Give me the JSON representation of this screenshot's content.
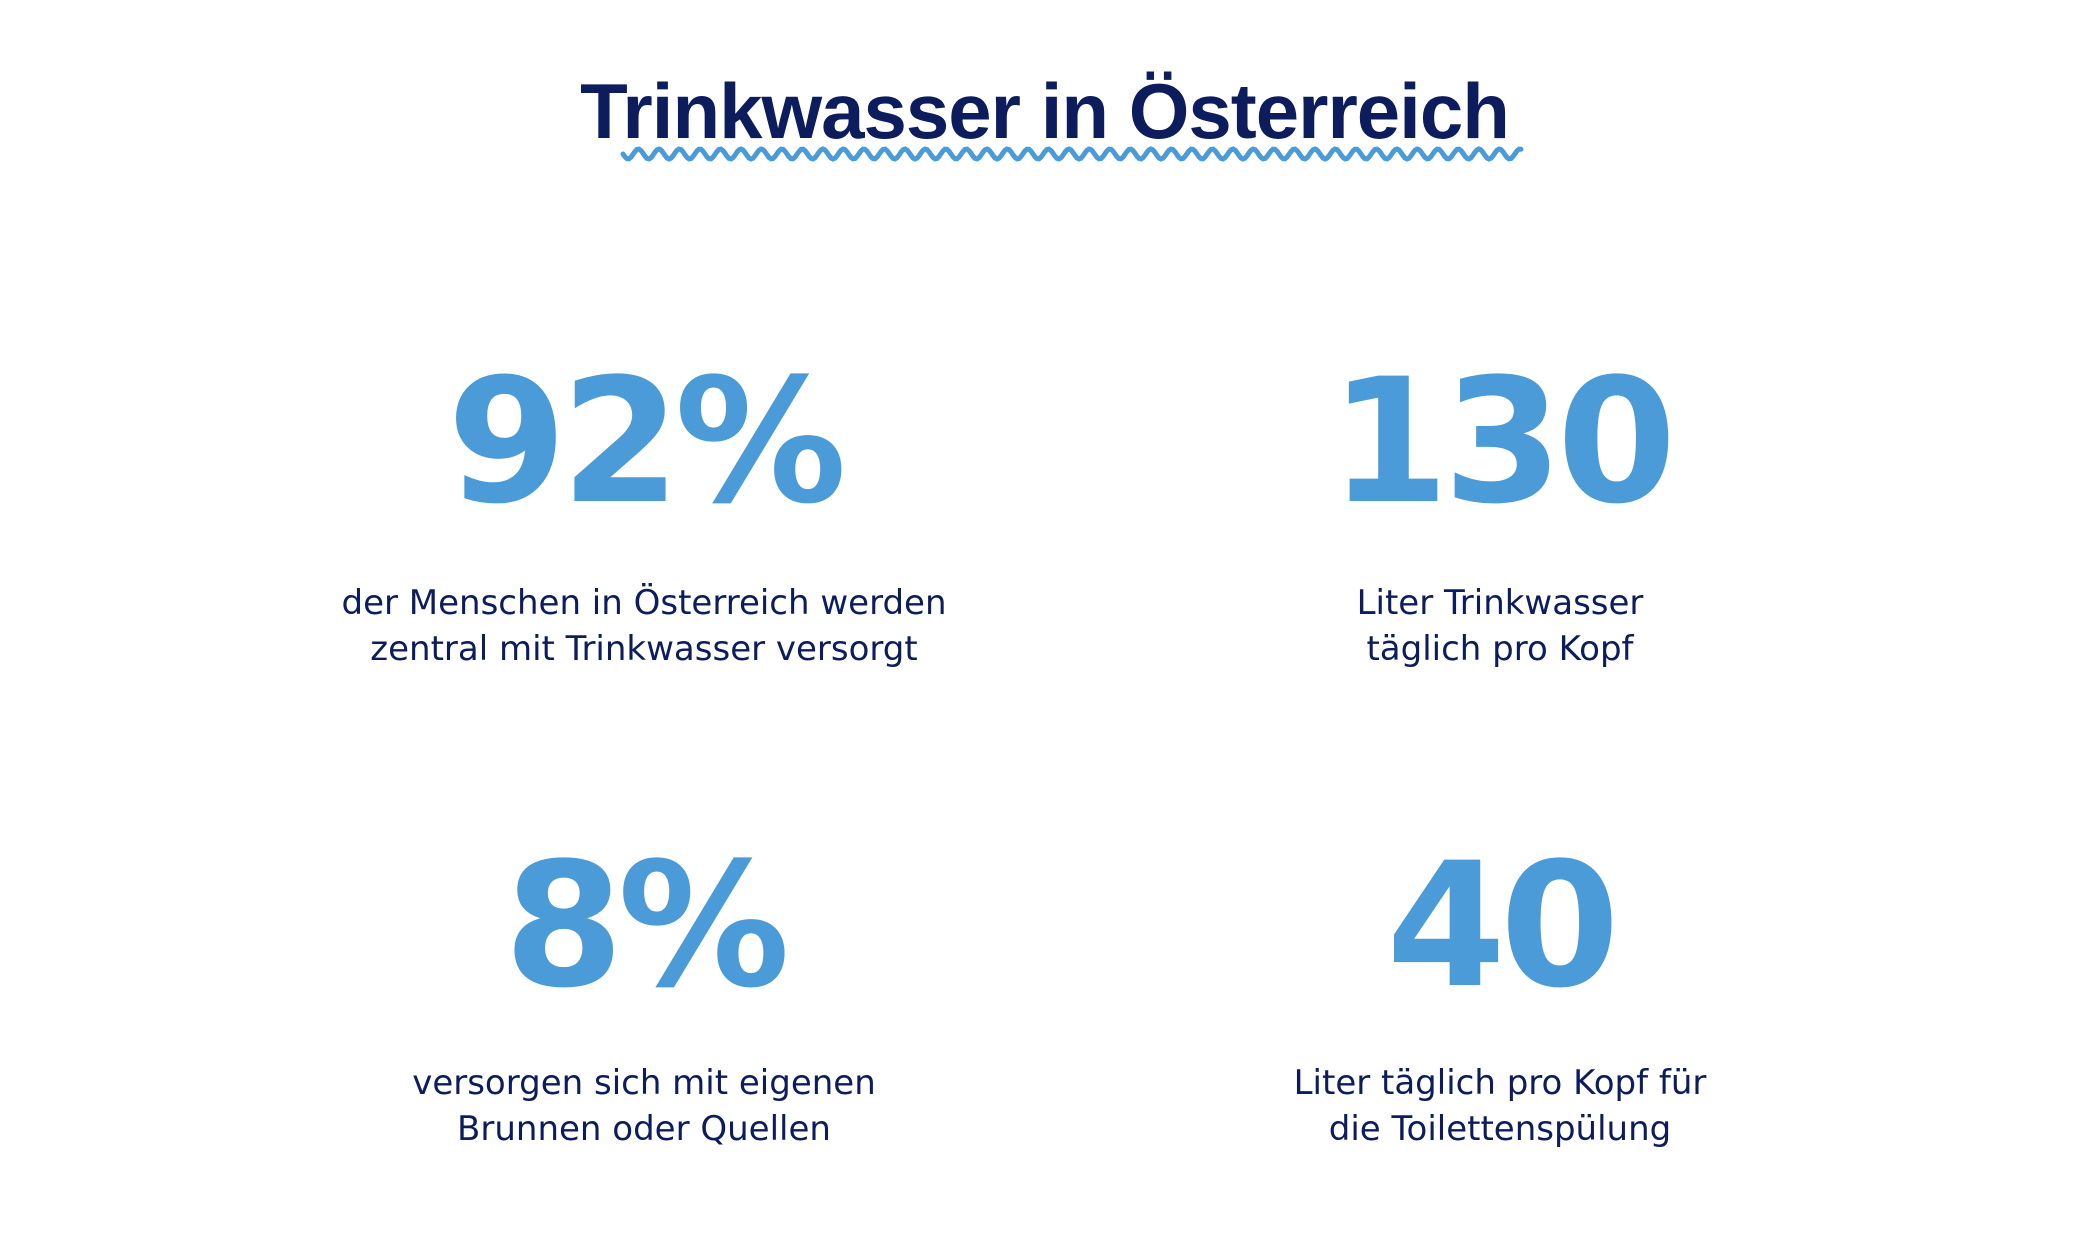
{
  "title": "Trinkwasser in Österreich",
  "colors": {
    "accent": "#4a9bd8",
    "text": "#0c1c5c"
  },
  "stats": [
    {
      "value": "92%",
      "desc1": "der Menschen in Österreich werden",
      "desc2": "zentral mit Trinkwasser versorgt"
    },
    {
      "value": "130",
      "desc1": "Liter Trinkwasser",
      "desc2": "täglich pro Kopf"
    },
    {
      "value": "8%",
      "desc1": "versorgen sich mit eigenen",
      "desc2": "Brunnen oder Quellen"
    },
    {
      "value": "40",
      "desc1": "Liter täglich pro Kopf für",
      "desc2": "die Toilettenspülung"
    }
  ]
}
